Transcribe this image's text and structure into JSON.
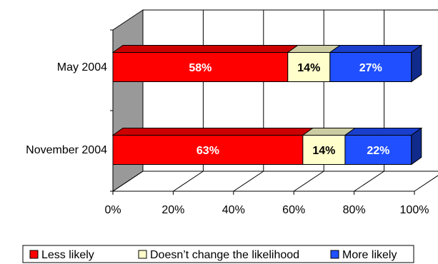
{
  "chart_data": {
    "type": "bar",
    "orientation": "horizontal",
    "stacked": true,
    "three_d": true,
    "categories": [
      "May 2004",
      "November 2004"
    ],
    "series": [
      {
        "name": "Less likely",
        "values": [
          58,
          63
        ],
        "color": "#ff0000"
      },
      {
        "name": "Doesn’t change the likelihood",
        "values": [
          14,
          14
        ],
        "color": "#ffffcc"
      },
      {
        "name": "More likely",
        "values": [
          27,
          22
        ],
        "color": "#1f4fff"
      }
    ],
    "data_labels": [
      [
        "58%",
        "14%",
        "27%"
      ],
      [
        "63%",
        "14%",
        "22%"
      ]
    ],
    "x_ticks": [
      "0%",
      "20%",
      "40%",
      "60%",
      "80%",
      "100%"
    ],
    "xlim": [
      0,
      100
    ],
    "legend_position": "bottom",
    "grid": "vertical",
    "wall_color": "#999999"
  }
}
